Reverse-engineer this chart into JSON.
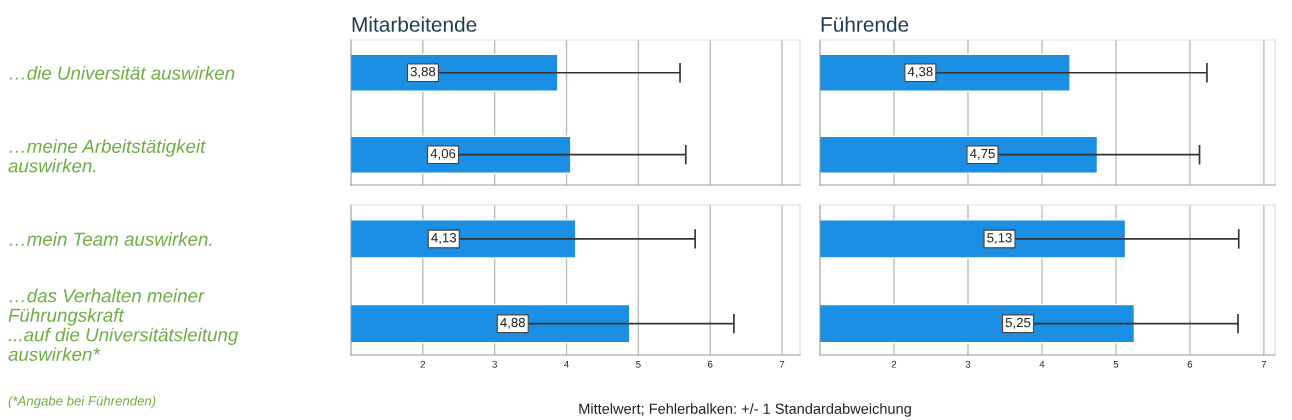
{
  "chart_data": [
    {
      "type": "bar",
      "orientation": "horizontal",
      "title": "Mitarbeitende",
      "categories": [
        "…die Universität auswirken",
        "…meine Arbeitstätigkeit\nauswirken."
      ],
      "values": [
        3.88,
        4.06
      ],
      "errors": [
        1.7,
        1.6
      ],
      "value_labels": [
        "3,88",
        "4,06"
      ],
      "color": "#1a8fe3",
      "xlim": [
        1,
        7.25
      ],
      "xticks": [
        2,
        3,
        4,
        5,
        6,
        7
      ],
      "grid": "x",
      "tick_labels": "y"
    },
    {
      "type": "bar",
      "orientation": "horizontal",
      "title": "Führende",
      "categories": [
        null,
        null
      ],
      "values": [
        4.38,
        4.75
      ],
      "errors": [
        1.85,
        1.38
      ],
      "value_labels": [
        "4,38",
        "4,75"
      ],
      "color": "#1a8fe3",
      "xlim": [
        1,
        7.15
      ],
      "xticks": [
        2,
        3,
        4,
        5,
        6,
        7
      ],
      "grid": "x",
      "tick_labels": false
    },
    {
      "type": "bar",
      "orientation": "horizontal",
      "categories": [
        "…mein Team auswirken.",
        "…das Verhalten meiner\nFührungskraft\n...auf die Universitätsleitung\nauswirken*"
      ],
      "values": [
        4.13,
        4.88
      ],
      "errors": [
        1.66,
        1.45
      ],
      "value_labels": [
        "4,13",
        "4,88"
      ],
      "color": "#1a8fe3",
      "xlim": [
        1,
        7.25
      ],
      "xticks": [
        2,
        3,
        4,
        5,
        6,
        7
      ],
      "grid": "x",
      "annotations": [
        "(*Angabe bei Führenden)"
      ]
    },
    {
      "type": "bar",
      "orientation": "horizontal",
      "categories": [
        null,
        null
      ],
      "values": [
        5.13,
        5.25
      ],
      "errors": [
        1.53,
        1.4
      ],
      "value_labels": [
        "5,13",
        "5,25"
      ],
      "color": "#1a8fe3",
      "xlim": [
        1,
        7.15
      ],
      "xticks": [
        2,
        3,
        4,
        5,
        6,
        7
      ],
      "grid": "x",
      "tick_labels": "x",
      "annotations": [
        "Mittelwert; Fehlerbalken: +/- 1 Standardabweichung"
      ]
    }
  ]
}
